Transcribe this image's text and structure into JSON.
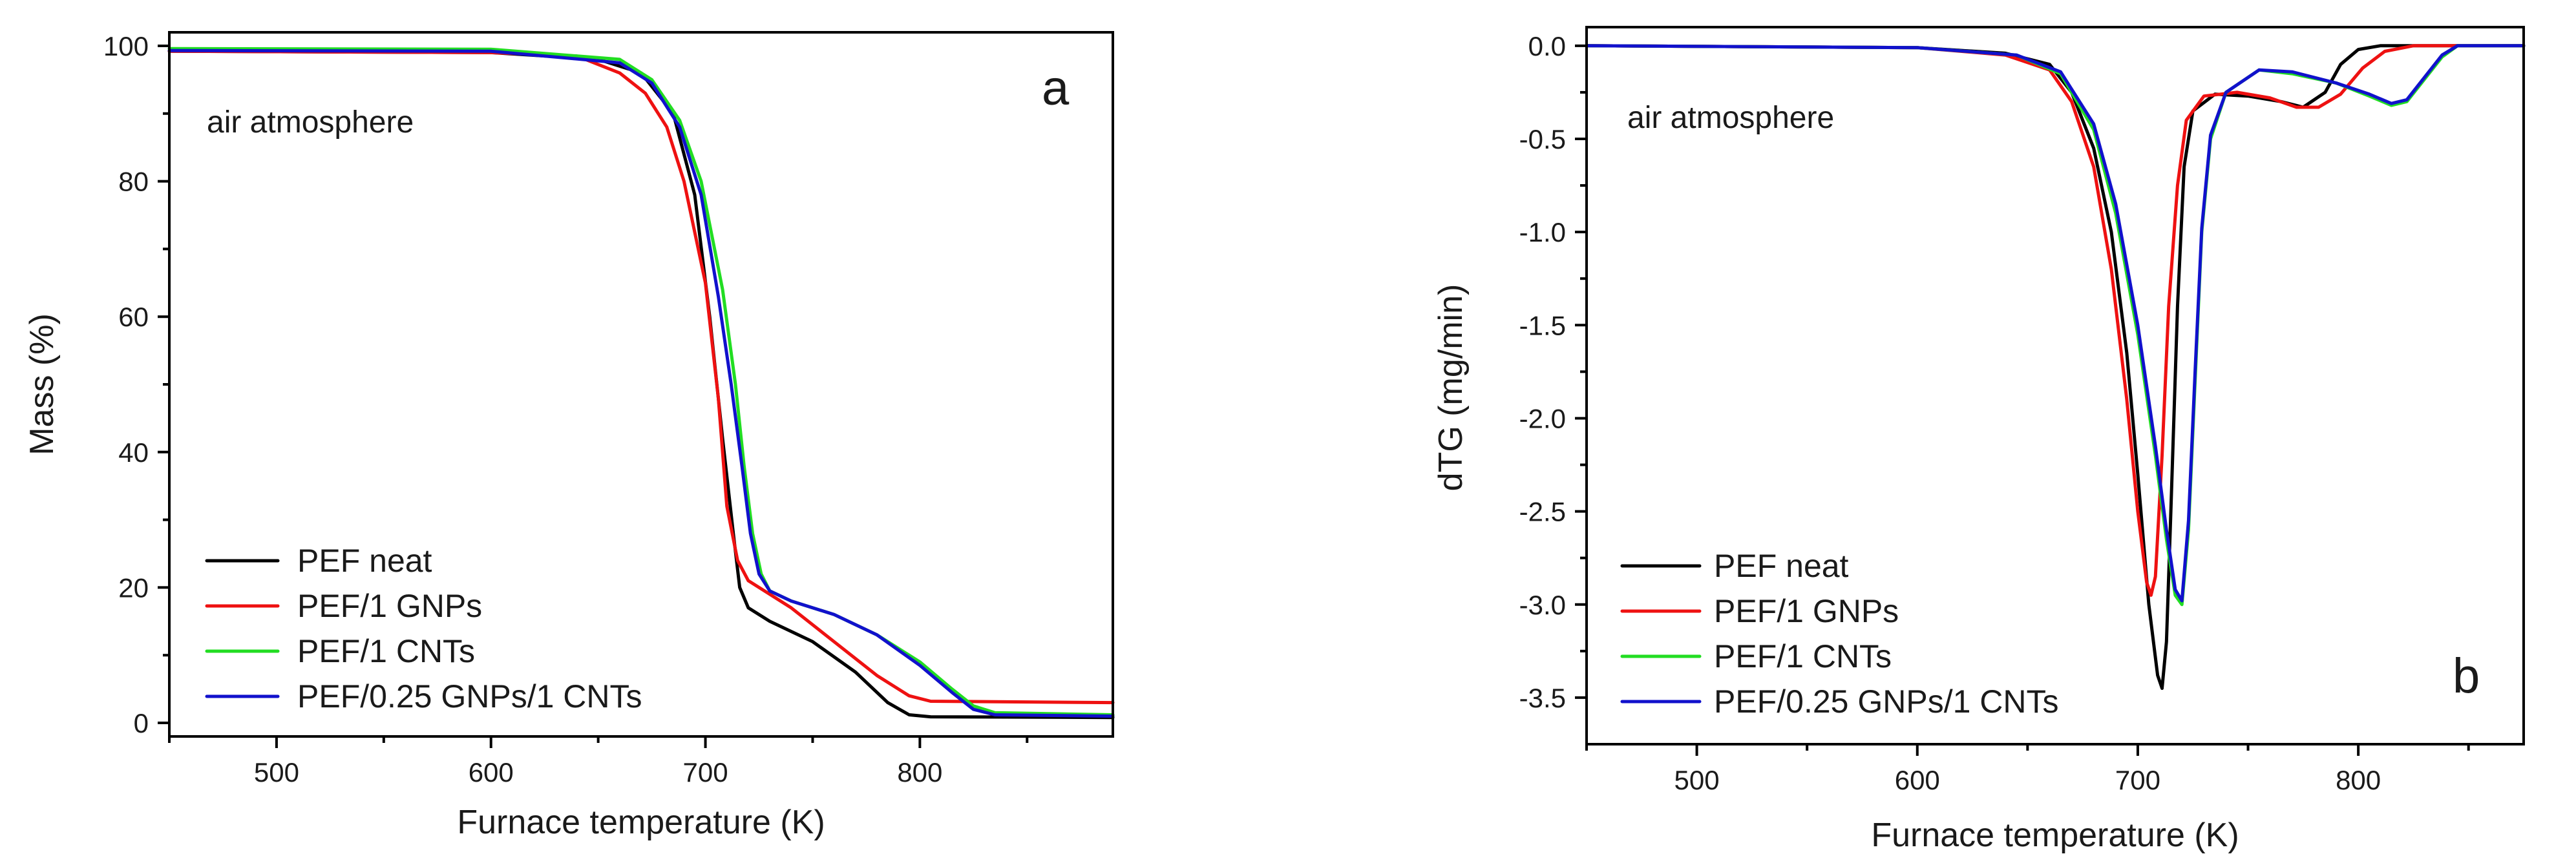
{
  "chart_data": [
    {
      "type": "line",
      "panel_letter": "a",
      "annotation": "air atmosphere",
      "xlabel": "Furnace temperature (K)",
      "ylabel": "Mass (%)",
      "xlim": [
        450,
        890
      ],
      "ylim": [
        -2,
        102
      ],
      "xticks": [
        500,
        600,
        700,
        800
      ],
      "yticks": [
        0,
        20,
        40,
        60,
        80,
        100
      ],
      "xtick_labels": [
        "500",
        "600",
        "700",
        "800"
      ],
      "ytick_labels": [
        "0",
        "20",
        "40",
        "60",
        "80",
        "100"
      ],
      "legend_position": "bottom-left",
      "series": [
        {
          "name": "PEF neat",
          "color": "#000000",
          "points": [
            [
              450,
              99.2
            ],
            [
              600,
              99
            ],
            [
              650,
              98
            ],
            [
              670,
              96
            ],
            [
              685,
              90
            ],
            [
              695,
              78
            ],
            [
              702,
              60
            ],
            [
              708,
              42
            ],
            [
              713,
              28
            ],
            [
              716,
              20
            ],
            [
              720,
              17
            ],
            [
              730,
              15
            ],
            [
              750,
              12
            ],
            [
              770,
              7.5
            ],
            [
              785,
              3
            ],
            [
              795,
              1.2
            ],
            [
              805,
              0.9
            ],
            [
              890,
              0.8
            ]
          ]
        },
        {
          "name": "PEF/1 GNPs",
          "color": "#ee1111",
          "points": [
            [
              450,
              99.2
            ],
            [
              600,
              99
            ],
            [
              640,
              98.5
            ],
            [
              660,
              96
            ],
            [
              672,
              93
            ],
            [
              682,
              88
            ],
            [
              690,
              80
            ],
            [
              700,
              65
            ],
            [
              706,
              48
            ],
            [
              710,
              32
            ],
            [
              715,
              24
            ],
            [
              720,
              21
            ],
            [
              740,
              17
            ],
            [
              760,
              12
            ],
            [
              780,
              7
            ],
            [
              795,
              4
            ],
            [
              805,
              3.2
            ],
            [
              890,
              3
            ]
          ]
        },
        {
          "name": "PEF/1 CNTs",
          "color": "#22dd22",
          "points": [
            [
              450,
              99.6
            ],
            [
              600,
              99.5
            ],
            [
              660,
              98
            ],
            [
              675,
              95
            ],
            [
              688,
              89
            ],
            [
              698,
              80
            ],
            [
              708,
              64
            ],
            [
              714,
              50
            ],
            [
              718,
              38
            ],
            [
              722,
              28
            ],
            [
              726,
              22
            ],
            [
              730,
              19.5
            ],
            [
              740,
              18
            ],
            [
              760,
              16
            ],
            [
              780,
              13
            ],
            [
              800,
              9
            ],
            [
              815,
              5
            ],
            [
              825,
              2.5
            ],
            [
              835,
              1.5
            ],
            [
              890,
              1.2
            ]
          ]
        },
        {
          "name": "PEF/0.25 GNPs/1 CNTs",
          "color": "#1111cc",
          "points": [
            [
              450,
              99.3
            ],
            [
              600,
              99.2
            ],
            [
              660,
              97.5
            ],
            [
              675,
              94.5
            ],
            [
              688,
              88
            ],
            [
              698,
              78
            ],
            [
              706,
              63
            ],
            [
              712,
              50
            ],
            [
              717,
              38
            ],
            [
              721,
              28
            ],
            [
              725,
              22
            ],
            [
              730,
              19.5
            ],
            [
              740,
              18
            ],
            [
              760,
              16
            ],
            [
              780,
              13
            ],
            [
              800,
              8.5
            ],
            [
              815,
              4.5
            ],
            [
              825,
              2
            ],
            [
              835,
              1.2
            ],
            [
              890,
              1
            ]
          ]
        }
      ]
    },
    {
      "type": "line",
      "panel_letter": "b",
      "annotation": "air atmosphere",
      "xlabel": "Furnace temperature (K)",
      "ylabel": "dTG (mg/min)",
      "xlim": [
        450,
        875
      ],
      "ylim": [
        -3.75,
        0.1
      ],
      "xticks": [
        500,
        600,
        700,
        800
      ],
      "yticks": [
        0,
        -0.5,
        -1.0,
        -1.5,
        -2.0,
        -2.5,
        -3.0,
        -3.5
      ],
      "xtick_labels": [
        "500",
        "600",
        "700",
        "800"
      ],
      "ytick_labels": [
        "0.0",
        "-0.5",
        "-1.0",
        "-1.5",
        "-2.0",
        "-2.5",
        "-3.0",
        "-3.5"
      ],
      "legend_position": "bottom-left",
      "series": [
        {
          "name": "PEF neat",
          "color": "#000000",
          "points": [
            [
              450,
              0
            ],
            [
              600,
              -0.01
            ],
            [
              640,
              -0.04
            ],
            [
              660,
              -0.1
            ],
            [
              670,
              -0.25
            ],
            [
              680,
              -0.55
            ],
            [
              688,
              -1.0
            ],
            [
              695,
              -1.65
            ],
            [
              700,
              -2.3
            ],
            [
              705,
              -3.0
            ],
            [
              709,
              -3.38
            ],
            [
              711,
              -3.45
            ],
            [
              713,
              -3.2
            ],
            [
              715,
              -2.5
            ],
            [
              718,
              -1.4
            ],
            [
              721,
              -0.65
            ],
            [
              725,
              -0.35
            ],
            [
              735,
              -0.26
            ],
            [
              750,
              -0.27
            ],
            [
              765,
              -0.3
            ],
            [
              775,
              -0.33
            ],
            [
              785,
              -0.25
            ],
            [
              792,
              -0.1
            ],
            [
              800,
              -0.02
            ],
            [
              810,
              0
            ],
            [
              875,
              0
            ]
          ]
        },
        {
          "name": "PEF/1 GNPs",
          "color": "#ee1111",
          "points": [
            [
              450,
              0
            ],
            [
              600,
              -0.01
            ],
            [
              640,
              -0.05
            ],
            [
              660,
              -0.13
            ],
            [
              670,
              -0.3
            ],
            [
              680,
              -0.65
            ],
            [
              688,
              -1.2
            ],
            [
              695,
              -1.9
            ],
            [
              700,
              -2.5
            ],
            [
              704,
              -2.88
            ],
            [
              706,
              -2.95
            ],
            [
              708,
              -2.85
            ],
            [
              711,
              -2.2
            ],
            [
              714,
              -1.4
            ],
            [
              718,
              -0.75
            ],
            [
              722,
              -0.4
            ],
            [
              730,
              -0.27
            ],
            [
              745,
              -0.25
            ],
            [
              760,
              -0.28
            ],
            [
              772,
              -0.33
            ],
            [
              782,
              -0.33
            ],
            [
              792,
              -0.26
            ],
            [
              802,
              -0.12
            ],
            [
              812,
              -0.03
            ],
            [
              825,
              0
            ],
            [
              875,
              0
            ]
          ]
        },
        {
          "name": "PEF/1 CNTs",
          "color": "#22dd22",
          "points": [
            [
              450,
              0
            ],
            [
              600,
              -0.01
            ],
            [
              645,
              -0.05
            ],
            [
              665,
              -0.15
            ],
            [
              680,
              -0.45
            ],
            [
              690,
              -0.9
            ],
            [
              700,
              -1.55
            ],
            [
              708,
              -2.2
            ],
            [
              713,
              -2.65
            ],
            [
              717,
              -2.95
            ],
            [
              720,
              -3.0
            ],
            [
              723,
              -2.6
            ],
            [
              726,
              -1.8
            ],
            [
              729,
              -1.0
            ],
            [
              733,
              -0.5
            ],
            [
              740,
              -0.25
            ],
            [
              755,
              -0.13
            ],
            [
              770,
              -0.15
            ],
            [
              790,
              -0.2
            ],
            [
              805,
              -0.27
            ],
            [
              815,
              -0.32
            ],
            [
              822,
              -0.3
            ],
            [
              830,
              -0.18
            ],
            [
              838,
              -0.06
            ],
            [
              845,
              0
            ],
            [
              875,
              0
            ]
          ]
        },
        {
          "name": "PEF/0.25 GNPs/1 CNTs",
          "color": "#1111cc",
          "points": [
            [
              450,
              0
            ],
            [
              600,
              -0.01
            ],
            [
              645,
              -0.05
            ],
            [
              665,
              -0.14
            ],
            [
              680,
              -0.42
            ],
            [
              690,
              -0.85
            ],
            [
              700,
              -1.5
            ],
            [
              708,
              -2.15
            ],
            [
              713,
              -2.6
            ],
            [
              717,
              -2.92
            ],
            [
              720,
              -2.98
            ],
            [
              723,
              -2.55
            ],
            [
              726,
              -1.75
            ],
            [
              729,
              -0.98
            ],
            [
              733,
              -0.48
            ],
            [
              740,
              -0.25
            ],
            [
              755,
              -0.13
            ],
            [
              770,
              -0.14
            ],
            [
              790,
              -0.2
            ],
            [
              805,
              -0.26
            ],
            [
              815,
              -0.31
            ],
            [
              822,
              -0.29
            ],
            [
              830,
              -0.17
            ],
            [
              838,
              -0.05
            ],
            [
              845,
              0
            ],
            [
              875,
              0
            ]
          ]
        }
      ]
    }
  ]
}
